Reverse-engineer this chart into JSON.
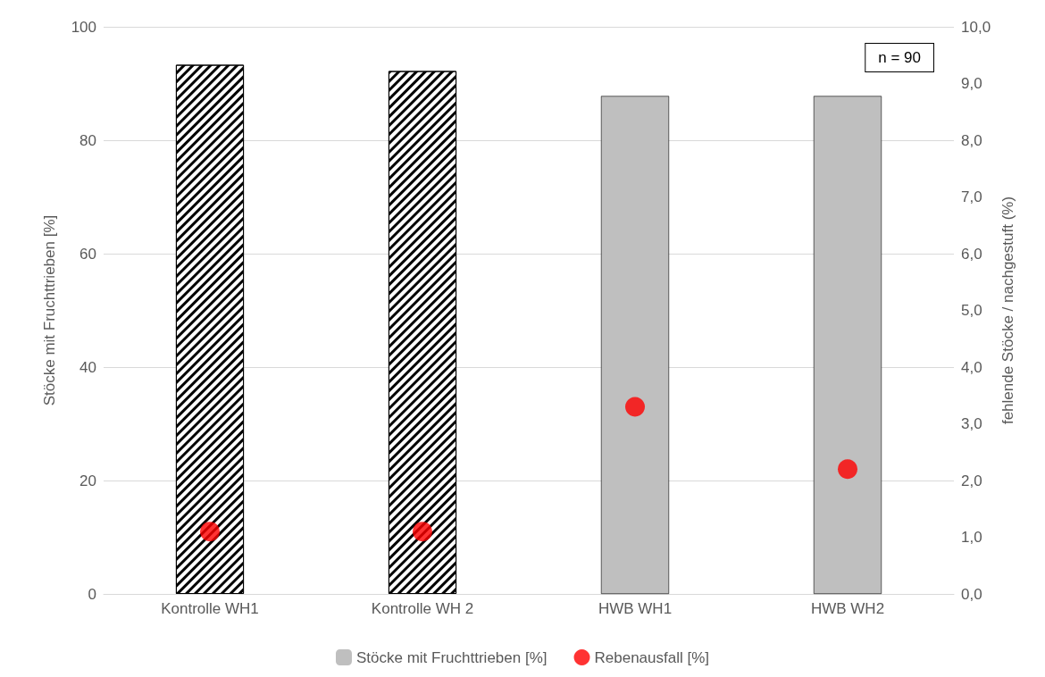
{
  "chart_data": {
    "type": "bar",
    "categories": [
      "Kontrolle WH1",
      "Kontrolle WH 2",
      "HWB WH1",
      "HWB WH2"
    ],
    "series": [
      {
        "name": "Stöcke mit Fruchttrieben [%]",
        "colors": [
          "#000000",
          "#000000",
          "#bfbfbf",
          "#bfbfbf"
        ],
        "values": [
          93.3,
          92.2,
          87.8,
          87.8
        ]
      },
      {
        "name": "Rebenausfall [%]",
        "type": "scatter",
        "axis": "y2",
        "color": "#ff0000",
        "values": [
          1.1,
          1.1,
          3.3,
          2.2
        ]
      }
    ],
    "ylabel": "Stöcke mit Fruchttrieben [%]",
    "y2label": "fehlende Stöcke / nachgestuft (%)",
    "ylim": [
      0,
      100
    ],
    "yticks": [
      0,
      20,
      40,
      60,
      80,
      100
    ],
    "y2lim": [
      0,
      10
    ],
    "y2ticks": [
      {
        "value": 0,
        "label": "0,0"
      },
      {
        "value": 1,
        "label": "1,0"
      },
      {
        "value": 2,
        "label": "2,0"
      },
      {
        "value": 3,
        "label": "3,0"
      },
      {
        "value": 4,
        "label": "4,0"
      },
      {
        "value": 5,
        "label": "5,0"
      },
      {
        "value": 6,
        "label": "6,0"
      },
      {
        "value": 7,
        "label": "7,0"
      },
      {
        "value": 8,
        "label": "8,0"
      },
      {
        "value": 9,
        "label": "9,0"
      },
      {
        "value": 10,
        "label": "10,0"
      }
    ],
    "annotations": [
      "n = 90"
    ],
    "grid": "y",
    "legend": "bottom",
    "marker": "circle"
  }
}
